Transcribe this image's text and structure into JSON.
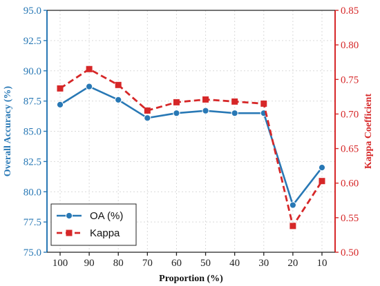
{
  "chart_data": {
    "type": "line",
    "categories": [
      "100",
      "90",
      "80",
      "70",
      "60",
      "50",
      "40",
      "30",
      "20",
      "10"
    ],
    "xlabel": "Proportion (%)",
    "y_left_label": "Overall Accuracy (%)",
    "y_right_label": "Kappa Coefficient",
    "y_left_lim": [
      75.0,
      95.0
    ],
    "y_right_lim": [
      0.5,
      0.85
    ],
    "y_left_ticks": [
      "75.0",
      "77.5",
      "80.0",
      "82.5",
      "85.0",
      "87.5",
      "90.0",
      "92.5",
      "95.0"
    ],
    "y_right_ticks": [
      "0.50",
      "0.55",
      "0.60",
      "0.65",
      "0.70",
      "0.75",
      "0.80",
      "0.85"
    ],
    "grid": true,
    "legend_position": "bottom-left",
    "series": [
      {
        "name": "OA (%)",
        "axis": "left",
        "color": "#2878b5",
        "line_style": "solid",
        "marker": "circle",
        "values": [
          87.2,
          88.7,
          87.6,
          86.1,
          86.5,
          86.7,
          86.5,
          86.5,
          78.9,
          82.0
        ]
      },
      {
        "name": "Kappa",
        "axis": "right",
        "color": "#d62728",
        "line_style": "dashed",
        "marker": "square",
        "values": [
          0.737,
          0.765,
          0.742,
          0.705,
          0.717,
          0.721,
          0.718,
          0.715,
          0.538,
          0.603
        ]
      }
    ]
  }
}
